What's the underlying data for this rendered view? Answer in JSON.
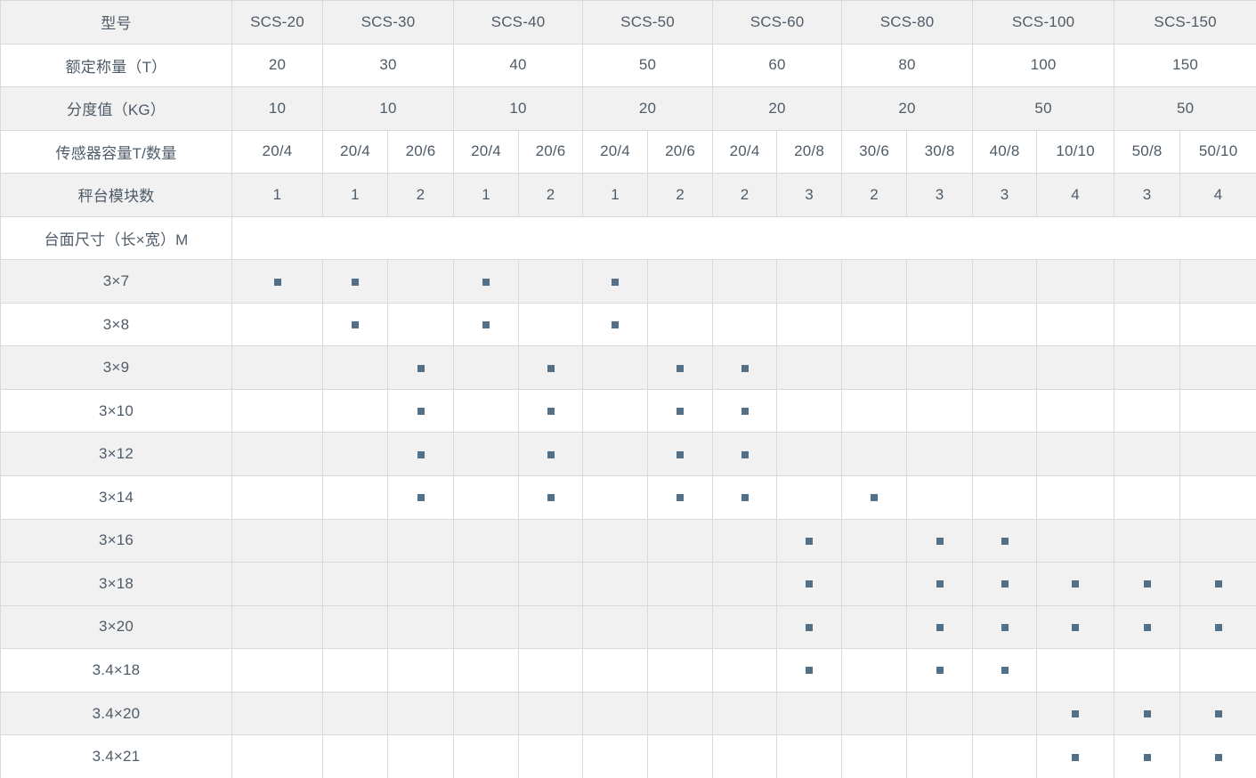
{
  "spec_table": {
    "field_labels": {
      "model": "型号",
      "rated_capacity": "额定称量（T）",
      "division_value": "分度值（KG）",
      "sensor_capacity": "传感器容量T/数量",
      "platform_modules": "秤台模块数",
      "platform_size": "台面尺寸（长×宽）M"
    },
    "models": [
      {
        "name": "SCS-20",
        "rated_capacity": "20",
        "division_value": "10",
        "variants": [
          {
            "sensor": "20/4",
            "modules": "1"
          }
        ]
      },
      {
        "name": "SCS-30",
        "rated_capacity": "30",
        "division_value": "10",
        "variants": [
          {
            "sensor": "20/4",
            "modules": "1"
          },
          {
            "sensor": "20/6",
            "modules": "2"
          }
        ]
      },
      {
        "name": "SCS-40",
        "rated_capacity": "40",
        "division_value": "10",
        "variants": [
          {
            "sensor": "20/4",
            "modules": "1"
          },
          {
            "sensor": "20/6",
            "modules": "2"
          }
        ]
      },
      {
        "name": "SCS-50",
        "rated_capacity": "50",
        "division_value": "20",
        "variants": [
          {
            "sensor": "20/4",
            "modules": "1"
          },
          {
            "sensor": "20/6",
            "modules": "2"
          }
        ]
      },
      {
        "name": "SCS-60",
        "rated_capacity": "60",
        "division_value": "20",
        "variants": [
          {
            "sensor": "20/4",
            "modules": "2"
          },
          {
            "sensor": "20/8",
            "modules": "3"
          }
        ]
      },
      {
        "name": "SCS-80",
        "rated_capacity": "80",
        "division_value": "20",
        "variants": [
          {
            "sensor": "30/6",
            "modules": "2"
          },
          {
            "sensor": "30/8",
            "modules": "3"
          }
        ]
      },
      {
        "name": "SCS-100",
        "rated_capacity": "100",
        "division_value": "50",
        "variants": [
          {
            "sensor": "40/8",
            "modules": "3"
          },
          {
            "sensor": "10/10",
            "modules": "4"
          }
        ]
      },
      {
        "name": "SCS-150",
        "rated_capacity": "150",
        "division_value": "50",
        "variants": [
          {
            "sensor": "50/8",
            "modules": "3"
          },
          {
            "sensor": "50/10",
            "modules": "4"
          }
        ]
      }
    ],
    "size_rows": [
      {
        "label": "3×7",
        "marks": [
          0,
          1,
          3,
          5
        ],
        "shaded": true
      },
      {
        "label": "3×8",
        "marks": [
          1,
          3,
          5
        ],
        "shaded": false
      },
      {
        "label": "3×9",
        "marks": [
          2,
          4,
          6,
          7
        ],
        "shaded": true
      },
      {
        "label": "3×10",
        "marks": [
          2,
          4,
          6,
          7
        ],
        "shaded": false
      },
      {
        "label": "3×12",
        "marks": [
          2,
          4,
          6,
          7
        ],
        "shaded": true
      },
      {
        "label": "3×14",
        "marks": [
          2,
          4,
          6,
          7,
          9
        ],
        "shaded": false
      },
      {
        "label": "3×16",
        "marks": [
          8,
          10,
          11
        ],
        "shaded": true
      },
      {
        "label": "3×18",
        "marks": [
          8,
          10,
          11,
          12,
          13,
          14
        ],
        "shaded": true
      },
      {
        "label": "3×20",
        "marks": [
          8,
          10,
          11,
          12,
          13,
          14
        ],
        "shaded": true
      },
      {
        "label": "3.4×18",
        "marks": [
          8,
          10,
          11
        ],
        "shaded": false
      },
      {
        "label": "3.4×20",
        "marks": [
          12,
          13,
          14
        ],
        "shaded": true
      },
      {
        "label": "3.4×21",
        "marks": [
          12,
          13,
          14
        ],
        "shaded": false
      }
    ],
    "colors": {
      "shaded_row_bg": "#f1f1f1",
      "text": "#4e5b68",
      "marker": "#527088",
      "border": "#d9d9d9"
    }
  }
}
